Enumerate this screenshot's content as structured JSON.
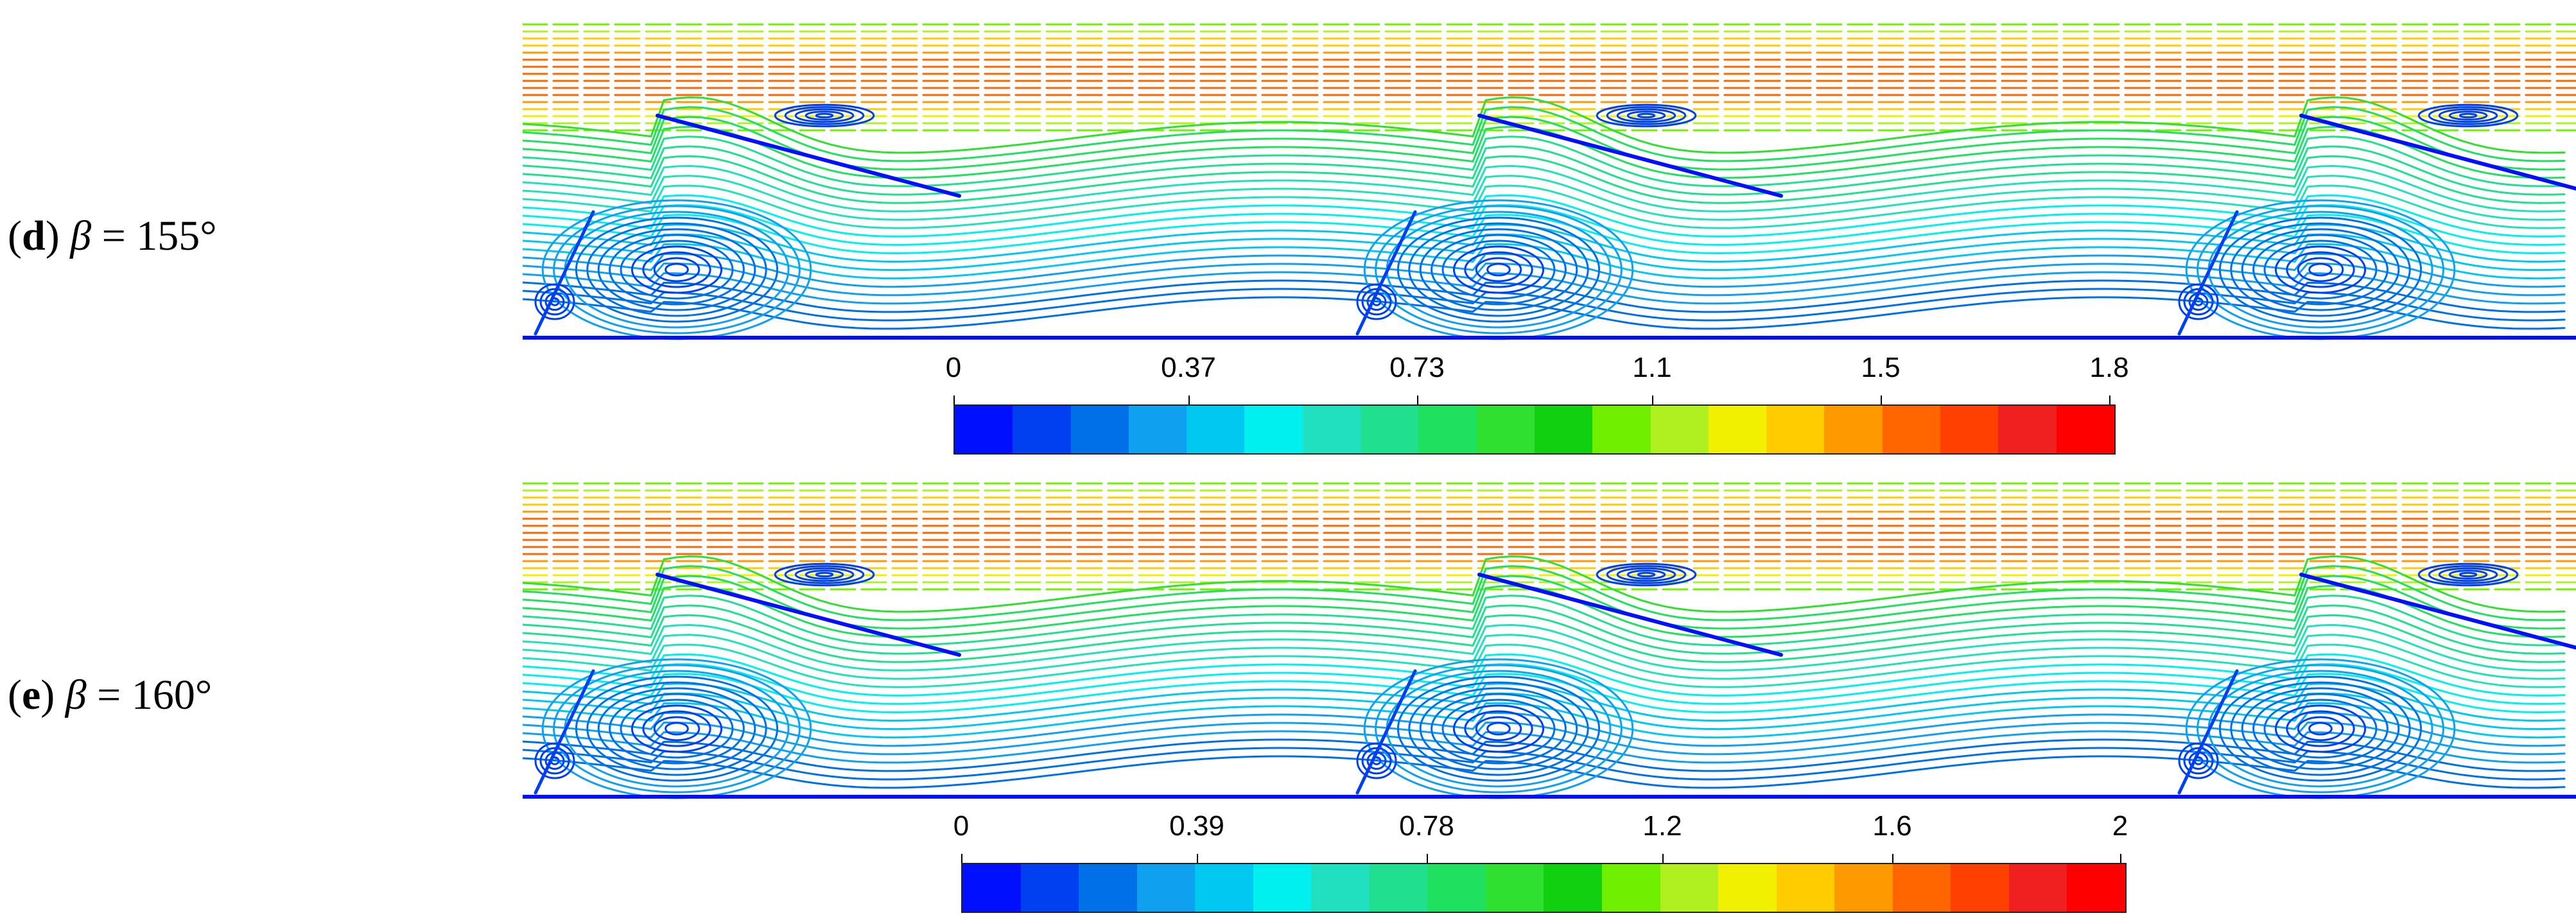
{
  "panels": [
    {
      "letter": "d",
      "symbol": "β",
      "equals": " = ",
      "value": "155°",
      "colorbar": {
        "ticks": [
          "0",
          "0.37",
          "0.73",
          "1.1",
          "1.5",
          "1.8"
        ]
      }
    },
    {
      "letter": "e",
      "symbol": "β",
      "equals": " = ",
      "value": "160°",
      "colorbar": {
        "ticks": [
          "0",
          "0.39",
          "0.78",
          "1.2",
          "1.6",
          "2"
        ]
      }
    }
  ],
  "colormap": [
    "#0010ff",
    "#0040f0",
    "#0070e8",
    "#10a0f0",
    "#00c8f0",
    "#00f0f0",
    "#20e0c0",
    "#20e090",
    "#20e060",
    "#30e030",
    "#10d010",
    "#70f000",
    "#b0f020",
    "#f0f000",
    "#ffcc00",
    "#ff9900",
    "#ff6600",
    "#ff4000",
    "#f02020",
    "#ff0000"
  ]
}
